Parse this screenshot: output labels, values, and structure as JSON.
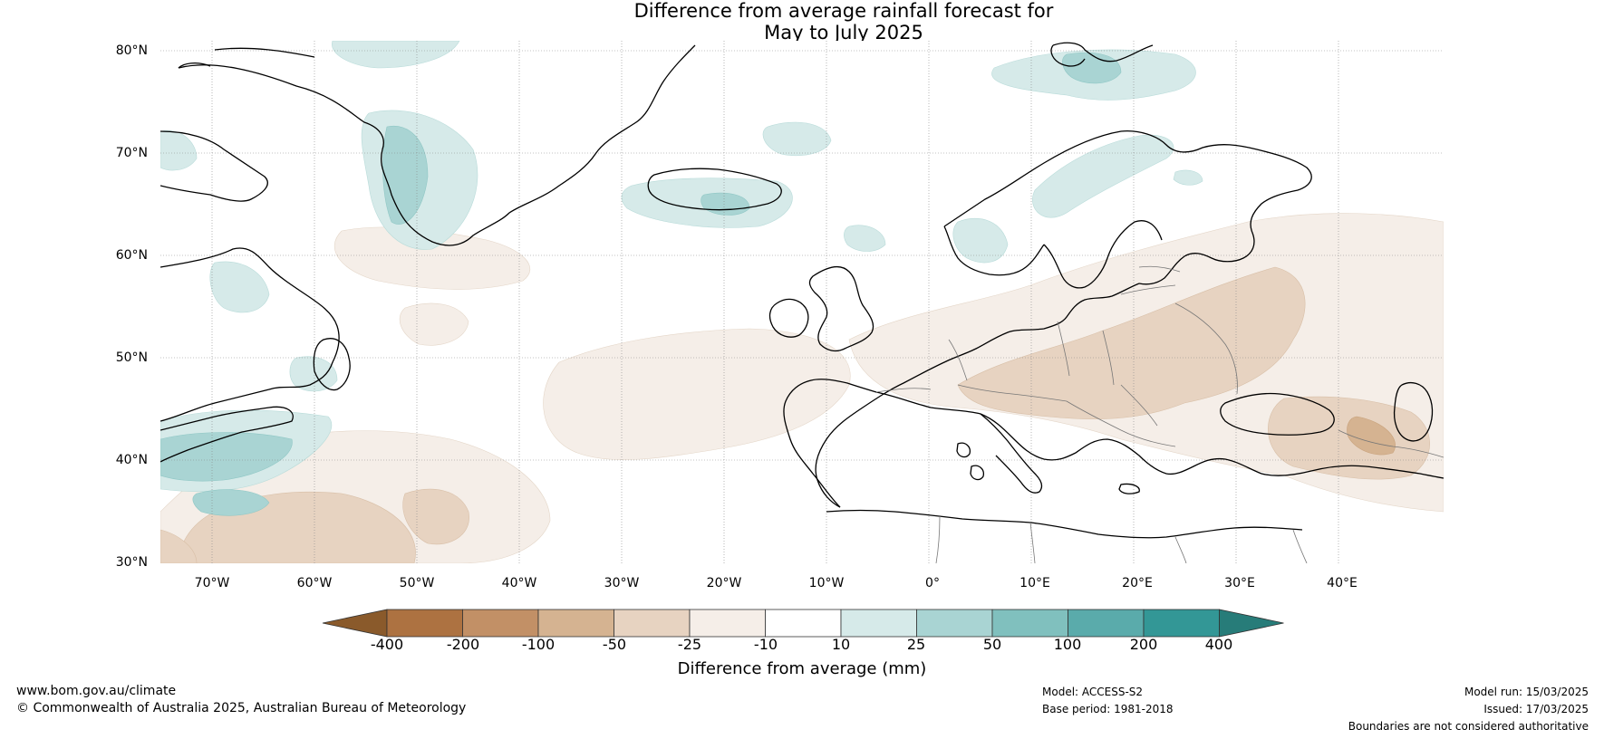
{
  "title": {
    "line1": "Difference from average rainfall forecast for",
    "line2": "May to July 2025"
  },
  "latitude_labels": [
    "80°N",
    "70°N",
    "60°N",
    "50°N",
    "40°N",
    "30°N"
  ],
  "longitude_labels": [
    "70°W",
    "60°W",
    "50°W",
    "40°W",
    "30°W",
    "20°W",
    "10°W",
    "0°",
    "10°E",
    "20°E",
    "30°E",
    "40°E"
  ],
  "colorbar": {
    "ticks": [
      "-400",
      "-200",
      "-100",
      "-50",
      "-25",
      "-10",
      "10",
      "25",
      "50",
      "100",
      "200",
      "400"
    ],
    "colors": [
      "#8a5a2b",
      "#ad7241",
      "#c29066",
      "#d5b391",
      "#e7d3c1",
      "#f5eee8",
      "#ffffff",
      "#d6eae9",
      "#a9d4d3",
      "#80c0be",
      "#5aabab",
      "#339796",
      "#277c79"
    ],
    "label": "Difference from average (mm)"
  },
  "footer": {
    "website": "www.bom.gov.au/climate",
    "copyright": "© Commonwealth of Australia 2025, Australian Bureau of Meteorology",
    "model": "Model: ACCESS-S2",
    "base_period": "Base period: 1981-2018",
    "model_run": "Model run: 15/03/2025",
    "issued": "Issued: 17/03/2025",
    "disclaimer": "Boundaries are not considered authoritative"
  }
}
